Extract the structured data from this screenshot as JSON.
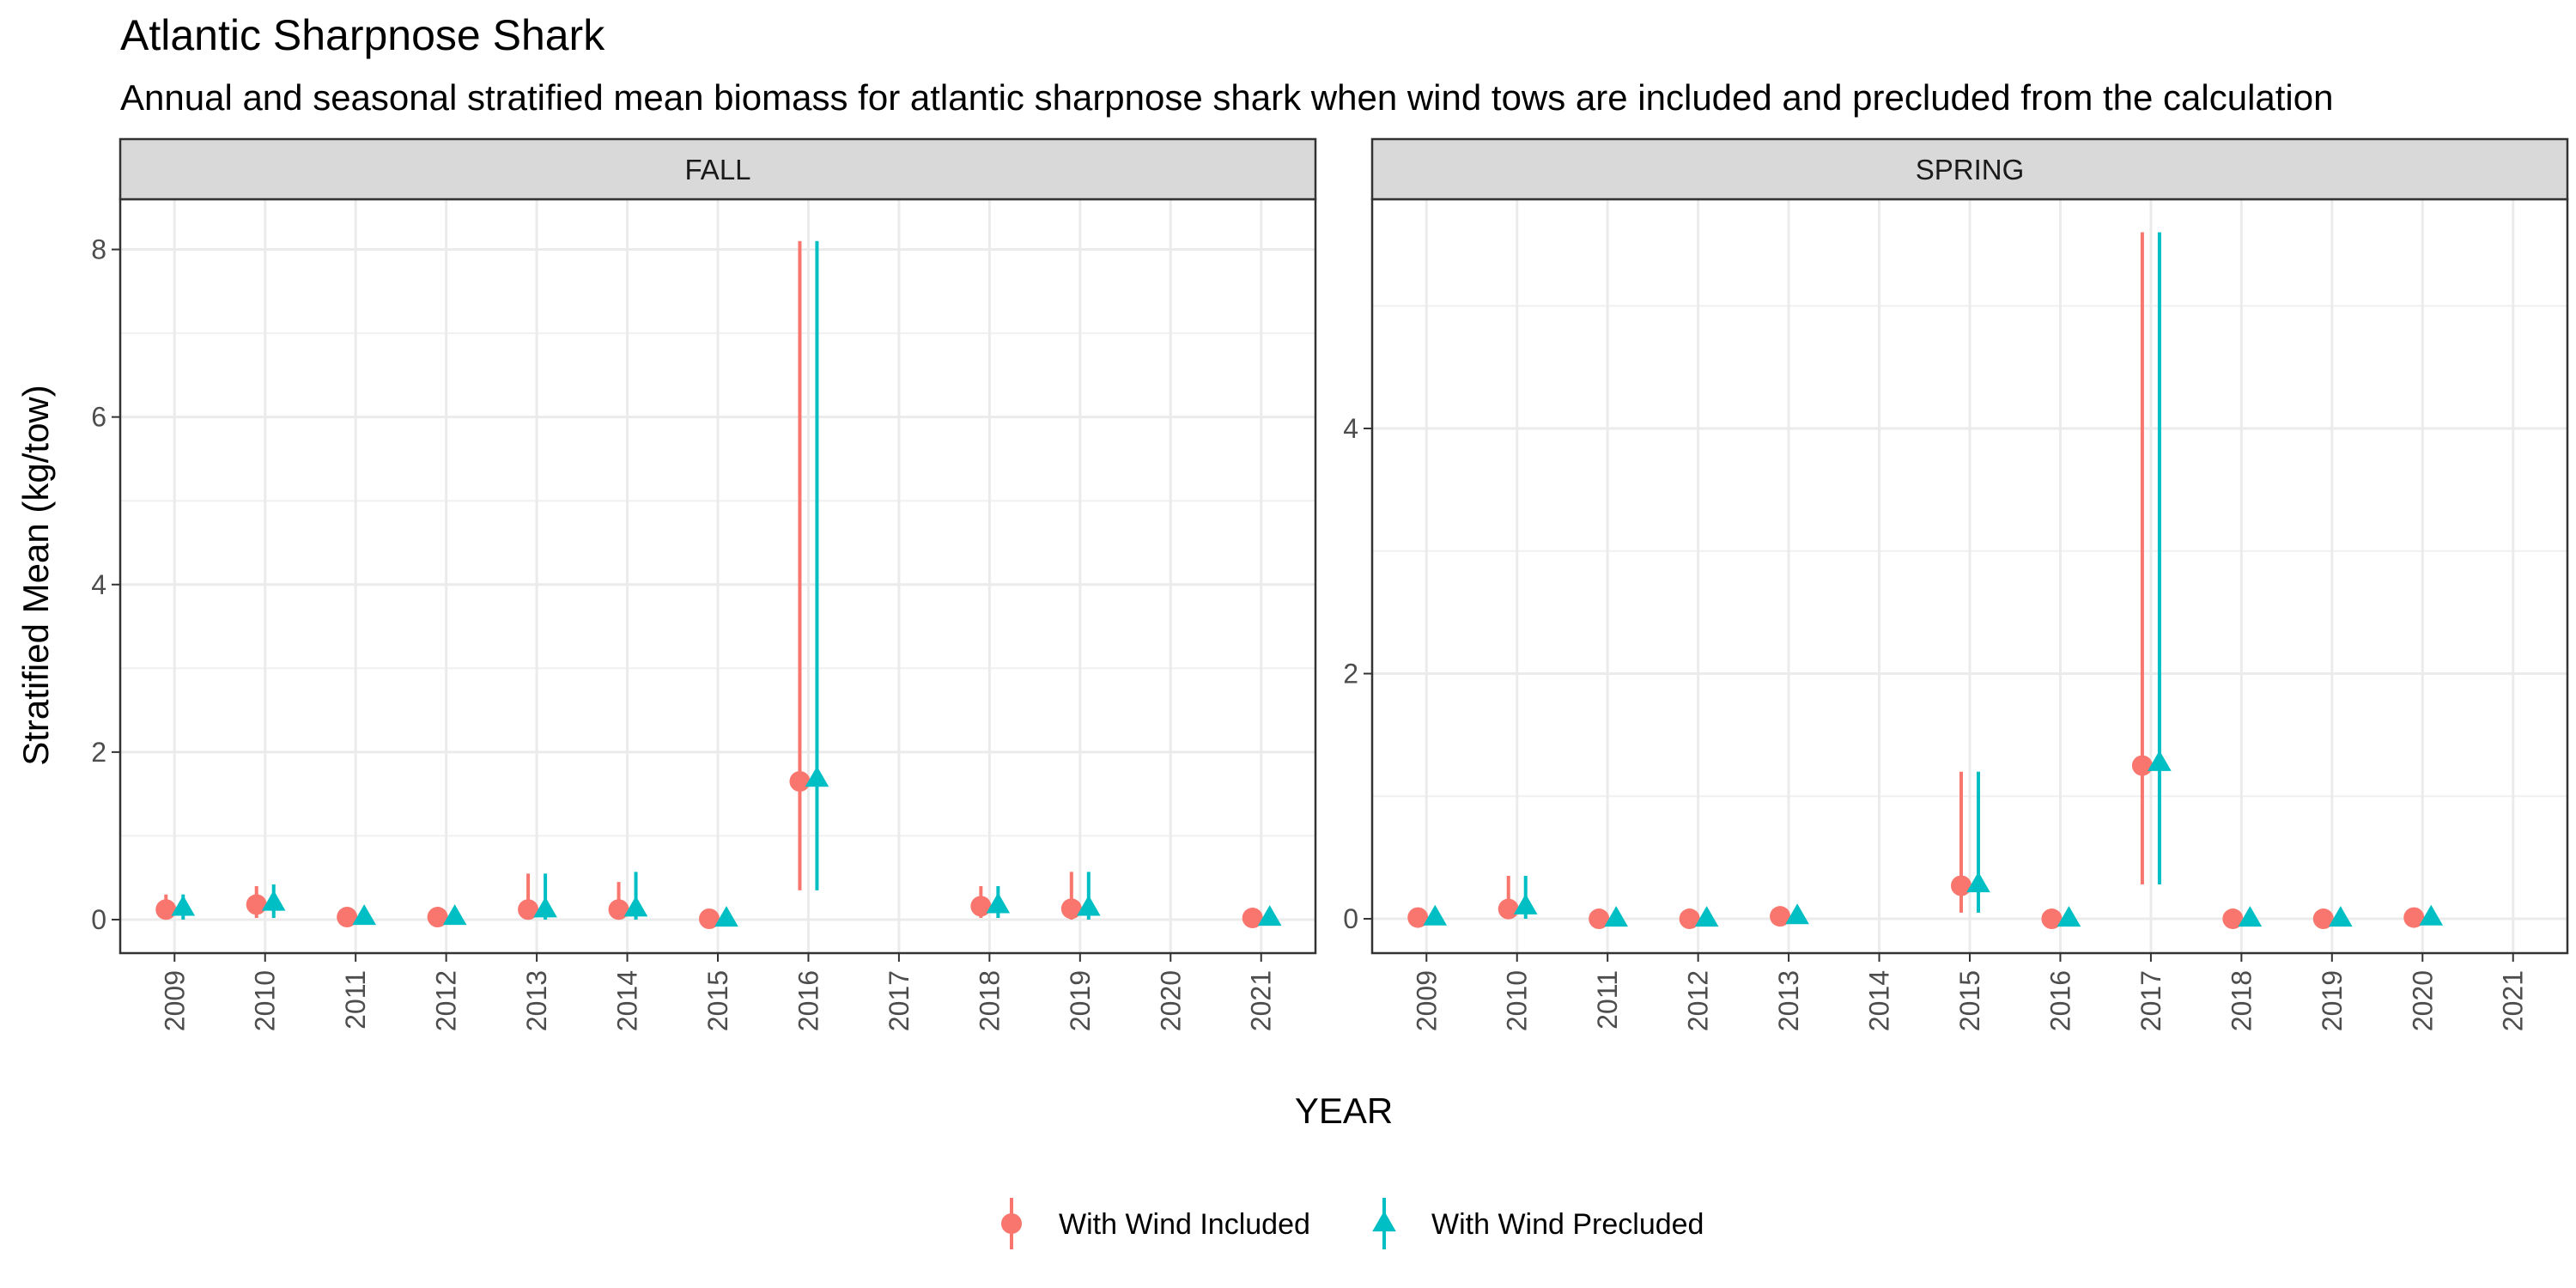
{
  "chart_data": {
    "type": "scatter",
    "title": "Atlantic Sharpnose Shark",
    "subtitle": "Annual and seasonal stratified mean biomass for atlantic sharpnose shark when wind tows are included and precluded from the calculation",
    "xlabel": "YEAR",
    "ylabel": "Stratified Mean (kg/tow)",
    "legend_position": "bottom",
    "grid": true,
    "series_legend": [
      {
        "name": "With Wind Included",
        "color": "#F8766D",
        "shape": "circle"
      },
      {
        "name": "With Wind Precluded",
        "color": "#00BFC4",
        "shape": "triangle"
      }
    ],
    "panels": [
      {
        "name": "FALL",
        "categories": [
          "2009",
          "2010",
          "2011",
          "2012",
          "2013",
          "2014",
          "2015",
          "2016",
          "2017",
          "2018",
          "2019",
          "2020",
          "2021"
        ],
        "ylim": [
          -0.4,
          8.6
        ],
        "yticks": [
          0,
          2,
          4,
          6,
          8
        ],
        "series": [
          {
            "name": "With Wind Included",
            "points": [
              {
                "x": "2009",
                "y": 0.12,
                "lo": 0.0,
                "hi": 0.3
              },
              {
                "x": "2010",
                "y": 0.18,
                "lo": 0.02,
                "hi": 0.4
              },
              {
                "x": "2011",
                "y": 0.03,
                "lo": 0.0,
                "hi": 0.08
              },
              {
                "x": "2012",
                "y": 0.03,
                "lo": 0.0,
                "hi": 0.08
              },
              {
                "x": "2013",
                "y": 0.12,
                "lo": 0.0,
                "hi": 0.55
              },
              {
                "x": "2014",
                "y": 0.12,
                "lo": 0.0,
                "hi": 0.45
              },
              {
                "x": "2015",
                "y": 0.01,
                "lo": 0.0,
                "hi": 0.03
              },
              {
                "x": "2016",
                "y": 1.65,
                "lo": 0.35,
                "hi": 8.1
              },
              {
                "x": "2018",
                "y": 0.16,
                "lo": 0.02,
                "hi": 0.4
              },
              {
                "x": "2019",
                "y": 0.13,
                "lo": 0.0,
                "hi": 0.57
              },
              {
                "x": "2021",
                "y": 0.02,
                "lo": 0.0,
                "hi": 0.04
              }
            ]
          },
          {
            "name": "With Wind Precluded",
            "points": [
              {
                "x": "2009",
                "y": 0.14,
                "lo": 0.0,
                "hi": 0.3
              },
              {
                "x": "2010",
                "y": 0.2,
                "lo": 0.02,
                "hi": 0.42
              },
              {
                "x": "2011",
                "y": 0.03,
                "lo": 0.0,
                "hi": 0.08
              },
              {
                "x": "2012",
                "y": 0.03,
                "lo": 0.0,
                "hi": 0.08
              },
              {
                "x": "2013",
                "y": 0.12,
                "lo": 0.0,
                "hi": 0.55
              },
              {
                "x": "2014",
                "y": 0.13,
                "lo": 0.0,
                "hi": 0.57
              },
              {
                "x": "2015",
                "y": 0.01,
                "lo": 0.0,
                "hi": 0.03
              },
              {
                "x": "2016",
                "y": 1.68,
                "lo": 0.35,
                "hi": 8.1
              },
              {
                "x": "2018",
                "y": 0.17,
                "lo": 0.02,
                "hi": 0.4
              },
              {
                "x": "2019",
                "y": 0.14,
                "lo": 0.0,
                "hi": 0.57
              },
              {
                "x": "2021",
                "y": 0.02,
                "lo": 0.0,
                "hi": 0.04
              }
            ]
          }
        ]
      },
      {
        "name": "SPRING",
        "categories": [
          "2009",
          "2010",
          "2011",
          "2012",
          "2013",
          "2014",
          "2015",
          "2016",
          "2017",
          "2018",
          "2019",
          "2020",
          "2021"
        ],
        "ylim": [
          -0.28,
          5.87
        ],
        "yticks": [
          0,
          2,
          4
        ],
        "series": [
          {
            "name": "With Wind Included",
            "points": [
              {
                "x": "2009",
                "y": 0.01,
                "lo": 0.0,
                "hi": 0.03
              },
              {
                "x": "2010",
                "y": 0.08,
                "lo": 0.0,
                "hi": 0.35
              },
              {
                "x": "2011",
                "y": 0.0,
                "lo": 0.0,
                "hi": 0.01
              },
              {
                "x": "2012",
                "y": 0.0,
                "lo": 0.0,
                "hi": 0.01
              },
              {
                "x": "2013",
                "y": 0.02,
                "lo": 0.0,
                "hi": 0.05
              },
              {
                "x": "2015",
                "y": 0.27,
                "lo": 0.05,
                "hi": 1.2
              },
              {
                "x": "2016",
                "y": 0.0,
                "lo": 0.0,
                "hi": 0.01
              },
              {
                "x": "2017",
                "y": 1.25,
                "lo": 0.28,
                "hi": 5.6
              },
              {
                "x": "2018",
                "y": 0.0,
                "lo": 0.0,
                "hi": 0.01
              },
              {
                "x": "2019",
                "y": 0.0,
                "lo": 0.0,
                "hi": 0.01
              },
              {
                "x": "2020",
                "y": 0.01,
                "lo": 0.0,
                "hi": 0.03
              }
            ]
          },
          {
            "name": "With Wind Precluded",
            "points": [
              {
                "x": "2009",
                "y": 0.01,
                "lo": 0.0,
                "hi": 0.03
              },
              {
                "x": "2010",
                "y": 0.1,
                "lo": 0.0,
                "hi": 0.35
              },
              {
                "x": "2011",
                "y": 0.0,
                "lo": 0.0,
                "hi": 0.01
              },
              {
                "x": "2012",
                "y": 0.0,
                "lo": 0.0,
                "hi": 0.01
              },
              {
                "x": "2013",
                "y": 0.02,
                "lo": 0.0,
                "hi": 0.05
              },
              {
                "x": "2015",
                "y": 0.28,
                "lo": 0.05,
                "hi": 1.2
              },
              {
                "x": "2016",
                "y": 0.0,
                "lo": 0.0,
                "hi": 0.01
              },
              {
                "x": "2017",
                "y": 1.27,
                "lo": 0.28,
                "hi": 5.6
              },
              {
                "x": "2018",
                "y": 0.0,
                "lo": 0.0,
                "hi": 0.01
              },
              {
                "x": "2019",
                "y": 0.0,
                "lo": 0.0,
                "hi": 0.01
              },
              {
                "x": "2020",
                "y": 0.01,
                "lo": 0.0,
                "hi": 0.03
              }
            ]
          }
        ]
      }
    ]
  }
}
